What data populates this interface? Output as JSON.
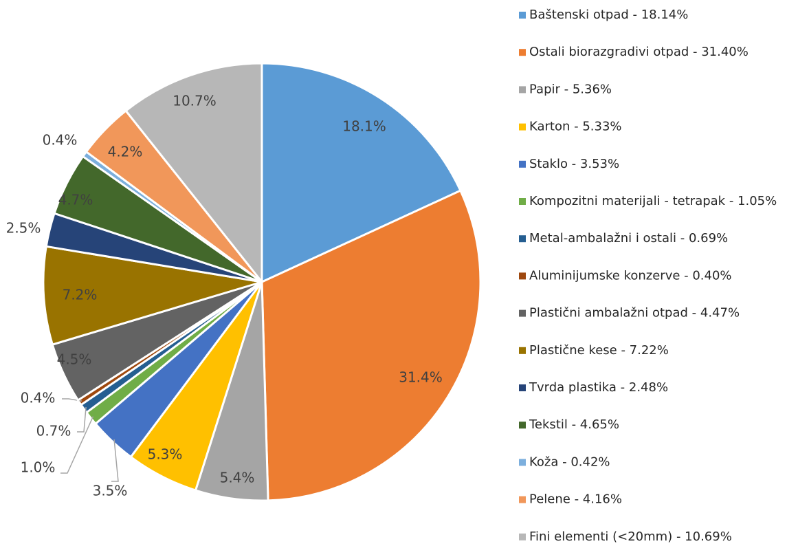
{
  "chart_data": {
    "type": "pie",
    "categories": [
      "Baštenski otpad - 18.14%",
      "Ostali biorazgradivi otpad - 31.40%",
      "Papir - 5.36%",
      "Karton - 5.33%",
      "Staklo - 3.53%",
      "Kompozitni materijali - tetrapak - 1.05%",
      "Metal-ambalažni i ostali - 0.69%",
      "Aluminijumske konzerve - 0.40%",
      "Plastični ambalažni otpad - 4.47%",
      "Plastične kese - 7.22%",
      "Tvrda plastika - 2.48%",
      "Tekstil - 4.65%",
      "Koža - 0.42%",
      "Pelene - 4.16%",
      "Fini elementi (<20mm) - 10.69%"
    ],
    "values": [
      18.14,
      31.4,
      5.36,
      5.33,
      3.53,
      1.05,
      0.69,
      0.4,
      4.47,
      7.22,
      2.48,
      4.65,
      0.42,
      4.16,
      10.69
    ],
    "value_labels": [
      "18.1%",
      "31.4%",
      "5.4%",
      "5.3%",
      "3.5%",
      "1.0%",
      "0.7%",
      "0.4%",
      "4.5%",
      "7.2%",
      "2.5%",
      "4.7%",
      "0.4%",
      "4.2%",
      "10.7%"
    ],
    "colors": [
      "#5b9bd5",
      "#ed7d31",
      "#a5a5a5",
      "#ffc000",
      "#4472c4",
      "#70ad47",
      "#255e91",
      "#9e480e",
      "#636363",
      "#997300",
      "#264478",
      "#43682b",
      "#7cafdd",
      "#f1975a",
      "#b7b7b7"
    ],
    "legend": "right"
  }
}
